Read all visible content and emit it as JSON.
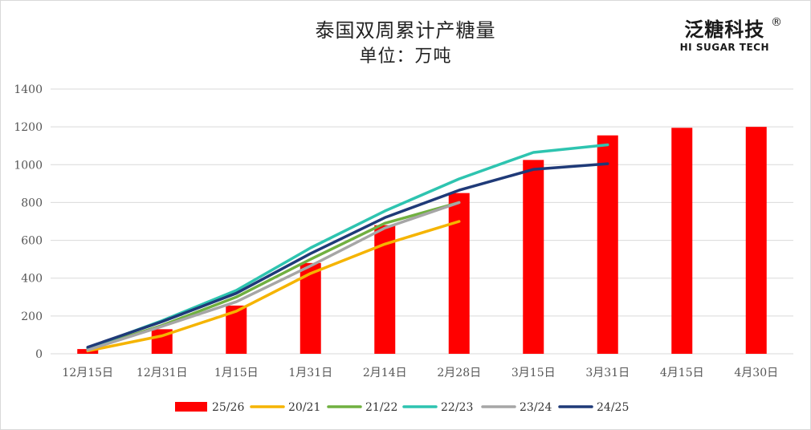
{
  "chart_data": {
    "type": "bar+line",
    "title": "泰国双周累计产糖量",
    "subtitle": "单位：万吨",
    "logo": {
      "brand": "泛糖科技",
      "registered": "®",
      "english": "HI SUGAR TECH"
    },
    "categories": [
      "12月15日",
      "12月31日",
      "1月15日",
      "1月31日",
      "2月14日",
      "2月28日",
      "3月15日",
      "3月31日",
      "4月15日",
      "4月30日"
    ],
    "ylim": [
      0,
      1400
    ],
    "yticks": [
      0,
      200,
      400,
      600,
      800,
      1000,
      1200,
      1400
    ],
    "grid": true,
    "legend_position": "bottom",
    "bar_series": {
      "name": "25/26",
      "color": "#ff0000",
      "values": [
        25,
        130,
        255,
        480,
        680,
        850,
        1025,
        1155,
        1195,
        1200
      ]
    },
    "series": [
      {
        "name": "20/21",
        "color": "#f5b400",
        "values": [
          15,
          95,
          225,
          425,
          580,
          700,
          null,
          null,
          null,
          null
        ]
      },
      {
        "name": "21/22",
        "color": "#70b040",
        "values": [
          25,
          150,
          300,
          500,
          690,
          800,
          null,
          null,
          null,
          null
        ]
      },
      {
        "name": "22/23",
        "color": "#2ec4b0",
        "values": [
          30,
          175,
          335,
          560,
          755,
          925,
          1065,
          1105,
          null,
          null
        ]
      },
      {
        "name": "23/24",
        "color": "#a6a6a6",
        "values": [
          20,
          145,
          275,
          465,
          665,
          800,
          null,
          null,
          null,
          null
        ]
      },
      {
        "name": "24/25",
        "color": "#1f3a78",
        "values": [
          35,
          170,
          320,
          530,
          720,
          865,
          975,
          1005,
          null,
          null
        ]
      }
    ]
  }
}
